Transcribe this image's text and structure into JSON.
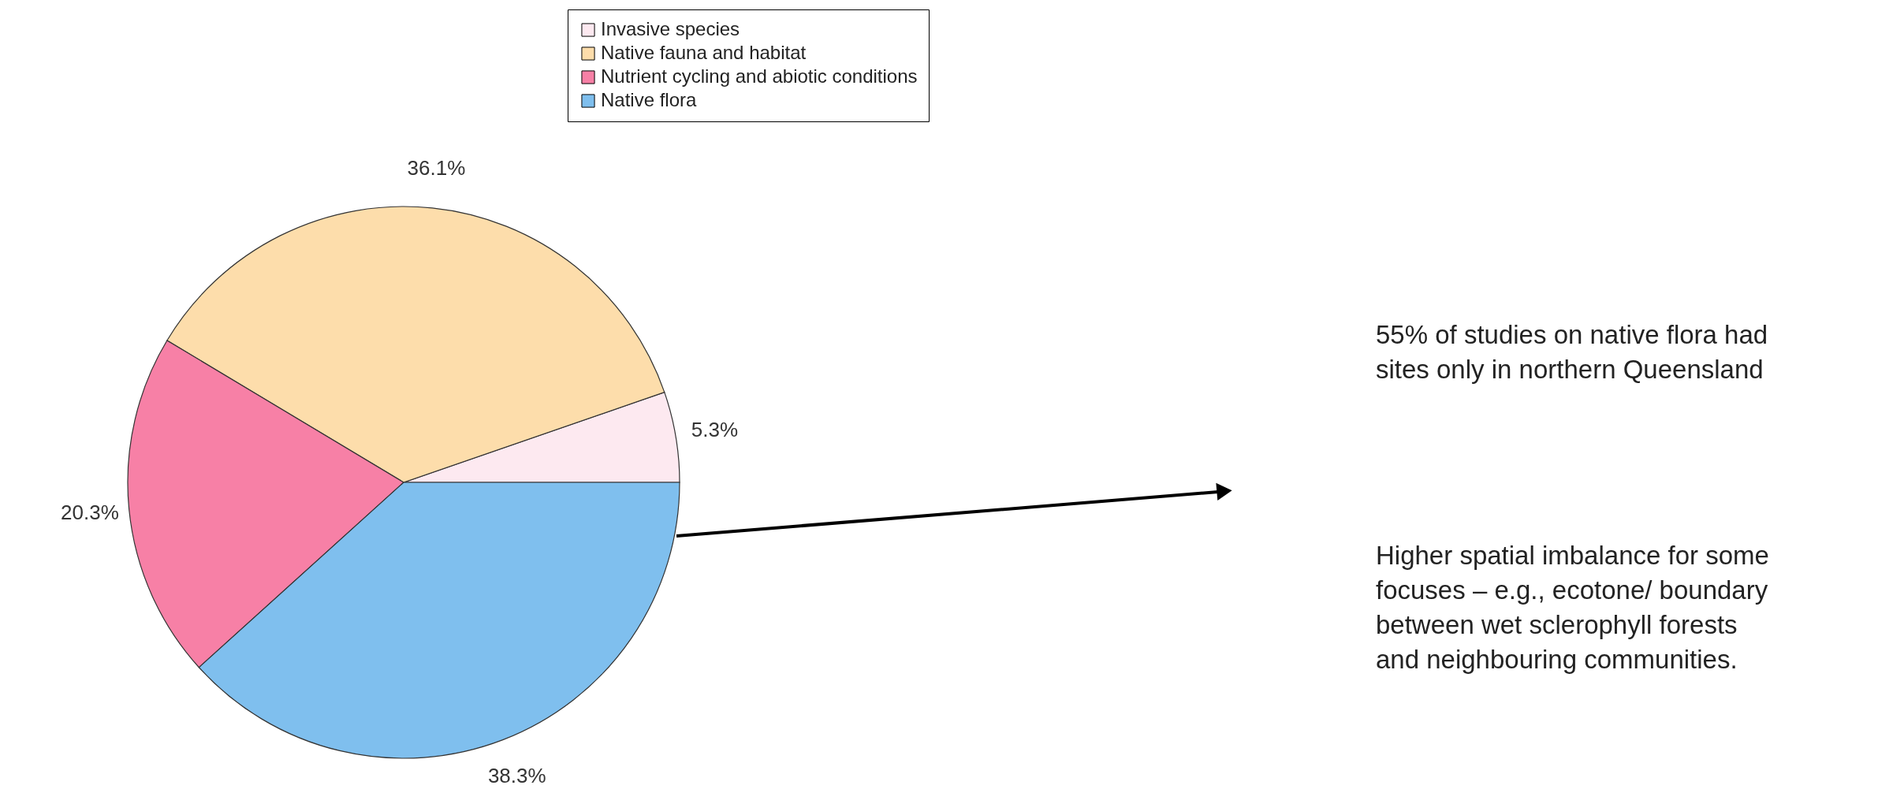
{
  "chart_data": {
    "type": "pie",
    "categories": [
      "Invasive species",
      "Native fauna and habitat",
      "Nutrient cycling and abiotic conditions",
      "Native flora"
    ],
    "values": [
      5.3,
      36.1,
      20.3,
      38.3
    ],
    "value_labels": [
      "5.3%",
      "36.1%",
      "20.3%",
      "38.3%"
    ],
    "colors": [
      "#fde9f0",
      "#fdddab",
      "#f780a6",
      "#7fbfee"
    ],
    "legend": "top",
    "annotations": [
      "55% of studies on native flora had\nsites only in northern Queensland",
      "Higher spatial imbalance for some\nfocuses – e.g., ecotone/ boundary\nbetween wet sclerophyll forests\nand neighbouring communities."
    ]
  }
}
